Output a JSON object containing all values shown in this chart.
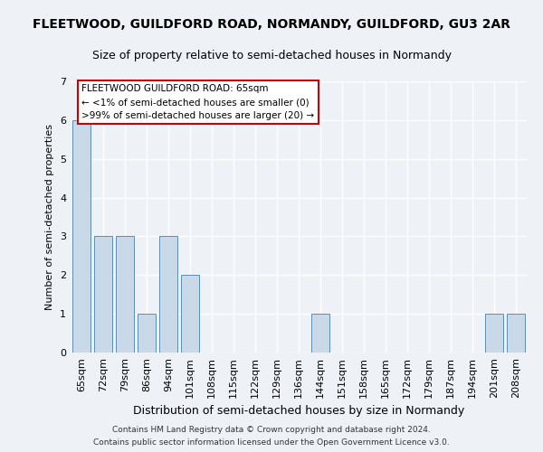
{
  "title": "FLEETWOOD, GUILDFORD ROAD, NORMANDY, GUILDFORD, GU3 2AR",
  "subtitle": "Size of property relative to semi-detached houses in Normandy",
  "xlabel": "Distribution of semi-detached houses by size in Normandy",
  "ylabel": "Number of semi-detached properties",
  "categories": [
    "65sqm",
    "72sqm",
    "79sqm",
    "86sqm",
    "94sqm",
    "101sqm",
    "108sqm",
    "115sqm",
    "122sqm",
    "129sqm",
    "136sqm",
    "144sqm",
    "151sqm",
    "158sqm",
    "165sqm",
    "172sqm",
    "179sqm",
    "187sqm",
    "194sqm",
    "201sqm",
    "208sqm"
  ],
  "values": [
    6,
    3,
    3,
    1,
    3,
    2,
    0,
    0,
    0,
    0,
    0,
    1,
    0,
    0,
    0,
    0,
    0,
    0,
    0,
    1,
    1
  ],
  "bar_color": "#c9d9e8",
  "bar_edge_color": "#5b8db8",
  "ylim": [
    0,
    7
  ],
  "yticks": [
    0,
    1,
    2,
    3,
    4,
    5,
    6,
    7
  ],
  "annotation_title": "FLEETWOOD GUILDFORD ROAD: 65sqm",
  "annotation_line1": "← <1% of semi-detached houses are smaller (0)",
  "annotation_line2": ">99% of semi-detached houses are larger (20) →",
  "footer_line1": "Contains HM Land Registry data © Crown copyright and database right 2024.",
  "footer_line2": "Contains public sector information licensed under the Open Government Licence v3.0.",
  "background_color": "#eef2f7",
  "grid_color": "#ffffff",
  "annotation_box_color": "#ffffff",
  "annotation_box_edge": "#cc0000"
}
